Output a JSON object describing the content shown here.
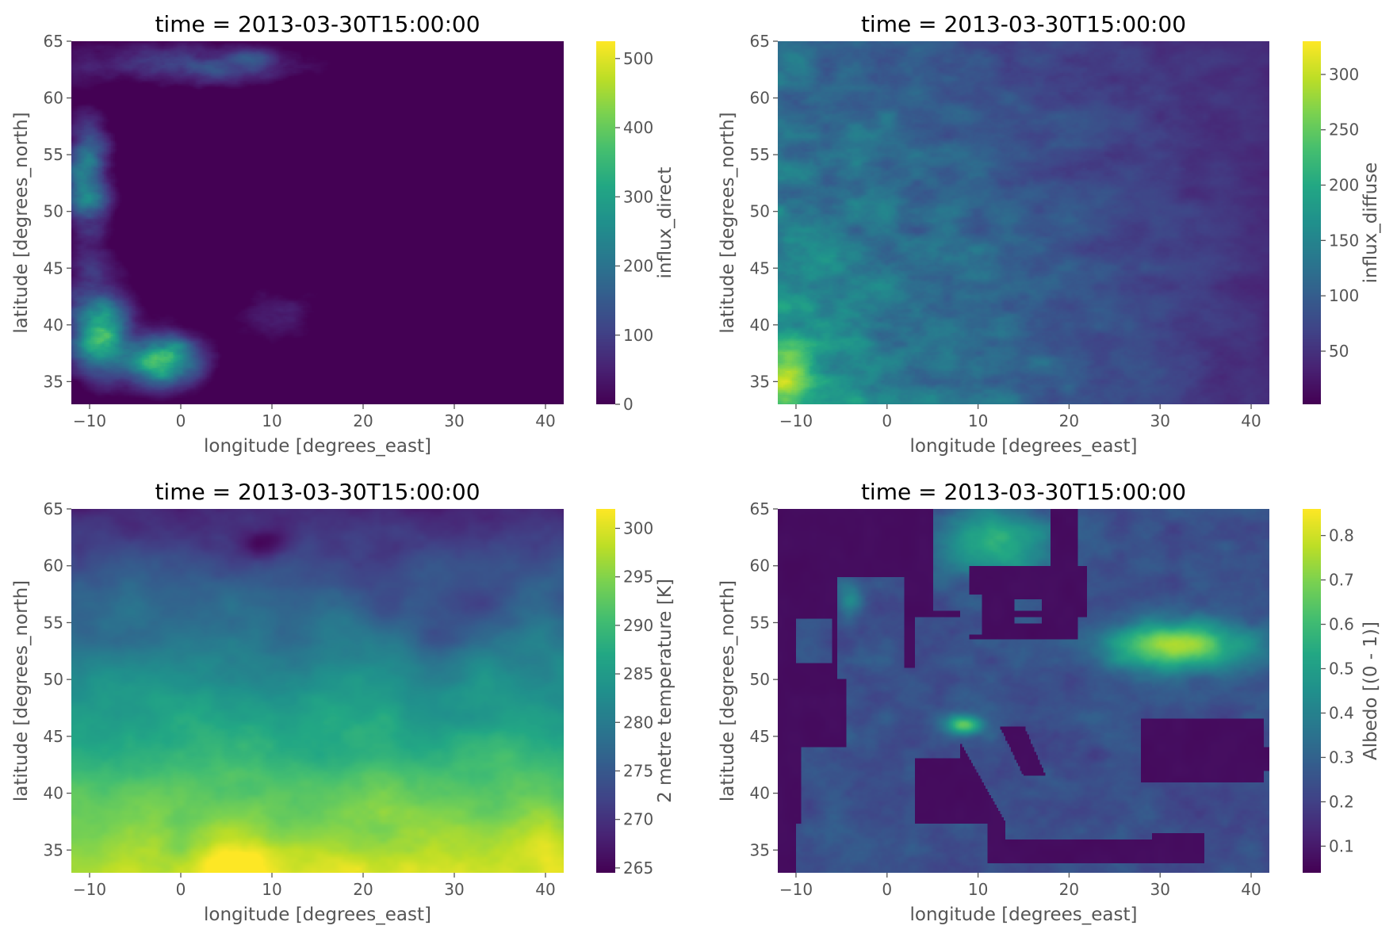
{
  "chart_data": [
    {
      "type": "heatmap",
      "title": "time = 2013-03-30T15:00:00",
      "xlabel": "longitude [degrees_east]",
      "ylabel": "latitude [degrees_north]",
      "xlim": [
        -12,
        42
      ],
      "ylim": [
        33,
        65
      ],
      "xticks": [
        -10,
        0,
        10,
        20,
        30,
        40
      ],
      "yticks": [
        35,
        40,
        45,
        50,
        55,
        60,
        65
      ],
      "colorbar": {
        "label": "influx_direct",
        "range": [
          0,
          525
        ],
        "ticks": [
          0,
          100,
          200,
          300,
          400,
          500
        ]
      },
      "colormap": "viridis",
      "field": "influx_direct",
      "missing_region": "top-right",
      "missing_color": "#e5e5e5",
      "grid": false
    },
    {
      "type": "heatmap",
      "title": "time = 2013-03-30T15:00:00",
      "xlabel": "longitude [degrees_east]",
      "ylabel": "latitude [degrees_north]",
      "xlim": [
        -12,
        42
      ],
      "ylim": [
        33,
        65
      ],
      "xticks": [
        -10,
        0,
        10,
        20,
        30,
        40
      ],
      "yticks": [
        35,
        40,
        45,
        50,
        55,
        60,
        65
      ],
      "colorbar": {
        "label": "influx_diffuse",
        "range": [
          2,
          330
        ],
        "ticks": [
          50,
          100,
          150,
          200,
          250,
          300
        ]
      },
      "colormap": "viridis",
      "field": "influx_diffuse",
      "missing_region": "top-right",
      "missing_color": "#e5e5e5",
      "grid": false
    },
    {
      "type": "heatmap",
      "title": "time = 2013-03-30T15:00:00",
      "xlabel": "longitude [degrees_east]",
      "ylabel": "latitude [degrees_north]",
      "xlim": [
        -12,
        42
      ],
      "ylim": [
        33,
        65
      ],
      "xticks": [
        -10,
        0,
        10,
        20,
        30,
        40
      ],
      "yticks": [
        35,
        40,
        45,
        50,
        55,
        60,
        65
      ],
      "colorbar": {
        "label": "2 metre temperature [K]",
        "range": [
          264.5,
          302
        ],
        "ticks": [
          265,
          270,
          275,
          280,
          285,
          290,
          295,
          300
        ]
      },
      "colormap": "viridis",
      "field": "temperature",
      "missing_region": "none",
      "grid": false
    },
    {
      "type": "heatmap",
      "title": "time = 2013-03-30T15:00:00",
      "xlabel": "longitude [degrees_east]",
      "ylabel": "latitude [degrees_north]",
      "xlim": [
        -12,
        42
      ],
      "ylim": [
        33,
        65
      ],
      "xticks": [
        -10,
        0,
        10,
        20,
        30,
        40
      ],
      "yticks": [
        35,
        40,
        45,
        50,
        55,
        60,
        65
      ],
      "colorbar": {
        "label": "Albedo [(0 - 1)]",
        "range": [
          0.04,
          0.86
        ],
        "ticks": [
          0.1,
          0.2,
          0.3,
          0.4,
          0.5,
          0.6,
          0.7,
          0.8
        ]
      },
      "colormap": "viridis",
      "field": "albedo",
      "missing_region": "none",
      "grid": false
    }
  ]
}
